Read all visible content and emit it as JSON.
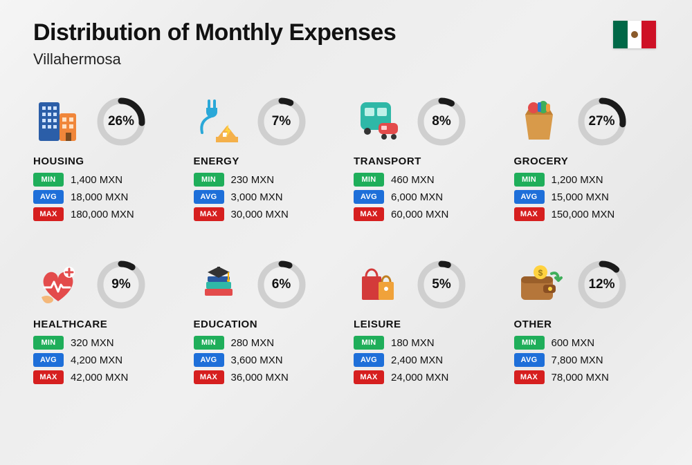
{
  "title": "Distribution of Monthly Expenses",
  "subtitle": "Villahermosa",
  "flag_colors": {
    "green": "#006847",
    "white": "#ffffff",
    "red": "#ce1126"
  },
  "donut_style": {
    "track_color": "#cfcfcf",
    "fill_color": "#1b1b1b",
    "stroke_width": 9,
    "radius": 30
  },
  "tag_labels": {
    "min": "MIN",
    "avg": "AVG",
    "max": "MAX"
  },
  "tag_colors": {
    "min": "#1fae5a",
    "avg": "#1e6fd9",
    "max": "#d61f1f"
  },
  "currency": "MXN",
  "categories": [
    {
      "key": "housing",
      "label": "HOUSING",
      "percent": 26,
      "min": "1,400 MXN",
      "avg": "18,000 MXN",
      "max": "180,000 MXN",
      "icon": "building-icon"
    },
    {
      "key": "energy",
      "label": "ENERGY",
      "percent": 7,
      "min": "230 MXN",
      "avg": "3,000 MXN",
      "max": "30,000 MXN",
      "icon": "energy-icon"
    },
    {
      "key": "transport",
      "label": "TRANSPORT",
      "percent": 8,
      "min": "460 MXN",
      "avg": "6,000 MXN",
      "max": "60,000 MXN",
      "icon": "bus-icon"
    },
    {
      "key": "grocery",
      "label": "GROCERY",
      "percent": 27,
      "min": "1,200 MXN",
      "avg": "15,000 MXN",
      "max": "150,000 MXN",
      "icon": "grocery-icon"
    },
    {
      "key": "healthcare",
      "label": "HEALTHCARE",
      "percent": 9,
      "min": "320 MXN",
      "avg": "4,200 MXN",
      "max": "42,000 MXN",
      "icon": "healthcare-icon"
    },
    {
      "key": "education",
      "label": "EDUCATION",
      "percent": 6,
      "min": "280 MXN",
      "avg": "3,600 MXN",
      "max": "36,000 MXN",
      "icon": "education-icon"
    },
    {
      "key": "leisure",
      "label": "LEISURE",
      "percent": 5,
      "min": "180 MXN",
      "avg": "2,400 MXN",
      "max": "24,000 MXN",
      "icon": "leisure-icon"
    },
    {
      "key": "other",
      "label": "OTHER",
      "percent": 12,
      "min": "600 MXN",
      "avg": "7,800 MXN",
      "max": "78,000 MXN",
      "icon": "wallet-icon"
    }
  ]
}
